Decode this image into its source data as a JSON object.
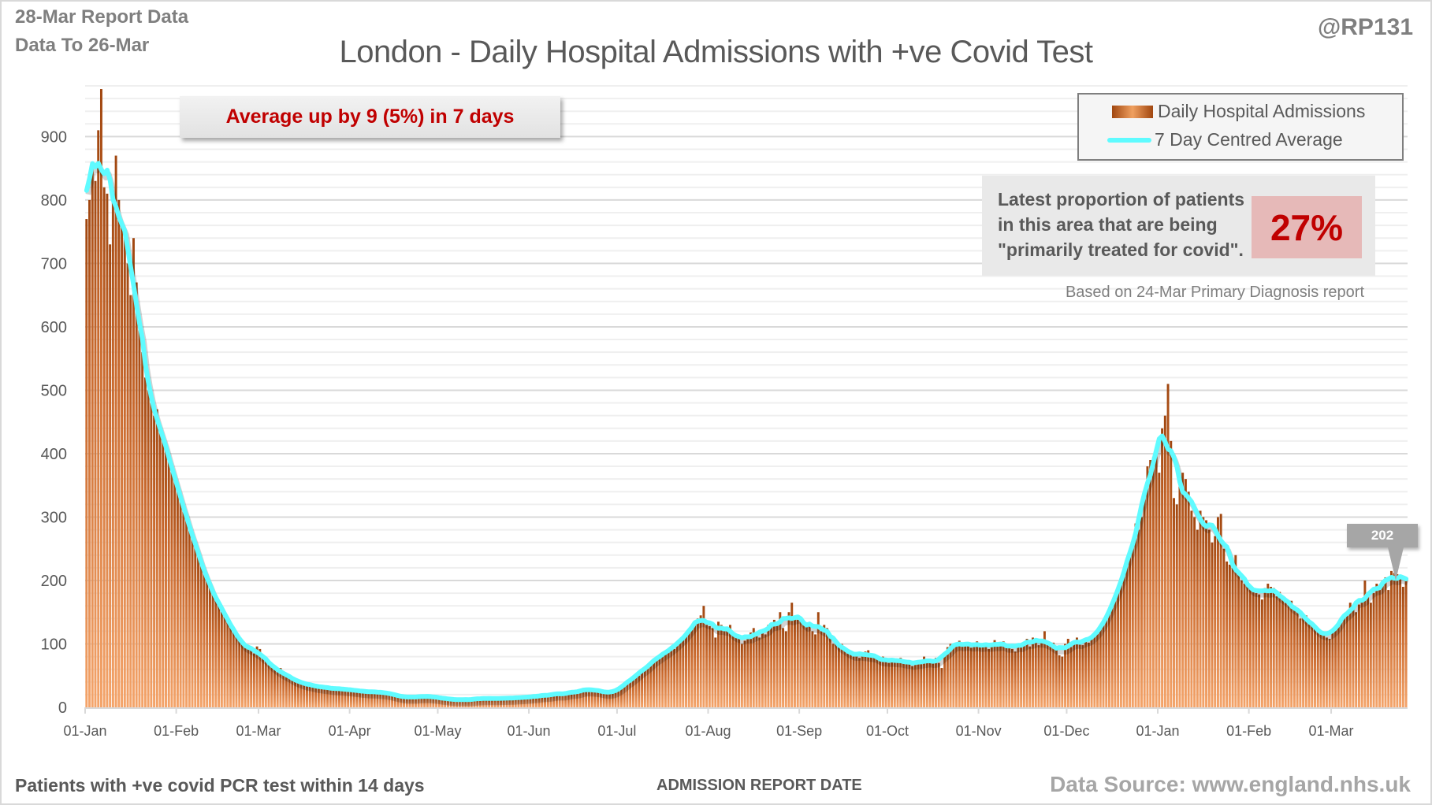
{
  "header": {
    "report_date": "28-Mar Report Data",
    "data_to": "Data To 26-Mar",
    "handle": "@RP131"
  },
  "footer": {
    "left_note": "Patients with +ve covid PCR test within 14 days",
    "source": "Data Source: www.england.nhs.uk"
  },
  "annotations": {
    "average_change": "Average up by 9 (5%) in 7 days",
    "proportion_lines": [
      "Latest proportion of patients",
      "in this area that are being",
      "\"primarily treated for covid\"."
    ],
    "proportion_value": "27%",
    "proportion_note": "Based on 24-Mar Primary Diagnosis report",
    "latest_average_label": "202"
  },
  "colors": {
    "bar_dark": "#a0460f",
    "bar_light": "#f4a46a",
    "average_line": "#5ffbff",
    "highlight_text": "#c00000",
    "highlight_box": "#e6b9b8"
  },
  "chart_data": {
    "type": "bar",
    "title": "London - Daily Hospital Admissions with +ve Covid Test",
    "xlabel": "ADMISSION REPORT DATE",
    "ylabel": "",
    "ylim": [
      0,
      980
    ],
    "y_ticks": [
      0,
      100,
      200,
      300,
      400,
      500,
      600,
      700,
      800,
      900
    ],
    "grid": true,
    "legend_position": "top-right",
    "start_date": "01-Jan",
    "end_date": "26-Mar",
    "x_tick_labels": [
      "01-Jan",
      "01-Feb",
      "01-Mar",
      "01-Apr",
      "01-May",
      "01-Jun",
      "01-Jul",
      "01-Aug",
      "01-Sep",
      "01-Oct",
      "01-Nov",
      "01-Dec",
      "01-Jan",
      "01-Feb",
      "01-Mar"
    ],
    "x_tick_day_index": [
      0,
      31,
      59,
      90,
      120,
      151,
      181,
      212,
      243,
      273,
      304,
      334,
      365,
      396,
      424
    ],
    "series": [
      {
        "name": "Daily Hospital Admissions",
        "type": "bar",
        "values": [
          770,
          800,
          860,
          830,
          910,
          975,
          820,
          810,
          730,
          815,
          870,
          800,
          760,
          740,
          700,
          650,
          740,
          670,
          600,
          560,
          520,
          500,
          480,
          460,
          470,
          440,
          420,
          410,
          400,
          380,
          360,
          350,
          330,
          310,
          300,
          290,
          270,
          260,
          240,
          230,
          215,
          200,
          190,
          180,
          175,
          165,
          150,
          150,
          140,
          130,
          120,
          115,
          105,
          100,
          95,
          92,
          90,
          85,
          96,
          92,
          78,
          75,
          70,
          64,
          60,
          56,
          62,
          54,
          50,
          48,
          45,
          42,
          40,
          40,
          38,
          36,
          35,
          34,
          33,
          34,
          32,
          31,
          30,
          31,
          30,
          29,
          28,
          30,
          29,
          28,
          28,
          27,
          26,
          25,
          26,
          25,
          24,
          25,
          24,
          23,
          25,
          24,
          23,
          22,
          21,
          20,
          18,
          17,
          16,
          15,
          15,
          16,
          17,
          18,
          17,
          16,
          18,
          17,
          16,
          19,
          15,
          14,
          13,
          12,
          12,
          13,
          14,
          12,
          11,
          10,
          12,
          13,
          14,
          13,
          14,
          15,
          14,
          13,
          14,
          15,
          14,
          13,
          14,
          15,
          14,
          15,
          16,
          15,
          14,
          16,
          17,
          16,
          17,
          18,
          17,
          19,
          18,
          20,
          21,
          20,
          19,
          22,
          24,
          23,
          21,
          20,
          24,
          26,
          28,
          27,
          26,
          30,
          29,
          28,
          27,
          25,
          24,
          22,
          23,
          22,
          25,
          28,
          30,
          35,
          40,
          45,
          48,
          52,
          50,
          55,
          62,
          68,
          70,
          72,
          78,
          80,
          85,
          86,
          90,
          95,
          92,
          100,
          105,
          110,
          115,
          120,
          125,
          130,
          140,
          145,
          160,
          130,
          128,
          125,
          110,
          135,
          130,
          125,
          120,
          130,
          115,
          112,
          108,
          100,
          105,
          110,
          118,
          125,
          112,
          110,
          120,
          115,
          130,
          128,
          138,
          132,
          150,
          125,
          120,
          150,
          165,
          140,
          138,
          142,
          135,
          128,
          130,
          120,
          115,
          150,
          120,
          130,
          125,
          110,
          100,
          105,
          95,
          100,
          90,
          85,
          88,
          80,
          82,
          78,
          85,
          88,
          90,
          82,
          78,
          76,
          75,
          80,
          72,
          70,
          74,
          76,
          72,
          78,
          75,
          70,
          68,
          65,
          72,
          70,
          68,
          80,
          75,
          72,
          70,
          78,
          70,
          62,
          85,
          95,
          100,
          98,
          102,
          105,
          98,
          96,
          100,
          94,
          102,
          104,
          96,
          98,
          100,
          92,
          95,
          106,
          100,
          98,
          104,
          100,
          96,
          92,
          88,
          98,
          100,
          102,
          108,
          96,
          110,
          105,
          98,
          104,
          120,
          100,
          96,
          102,
          92,
          82,
          80,
          100,
          108,
          95,
          100,
          110,
          105,
          98,
          106,
          102,
          110,
          115,
          118,
          124,
          130,
          140,
          150,
          160,
          175,
          185,
          200,
          210,
          225,
          240,
          260,
          290,
          280,
          300,
          330,
          380,
          390,
          395,
          400,
          370,
          440,
          460,
          510,
          420,
          330,
          320,
          350,
          370,
          360,
          340,
          310,
          300,
          280,
          310,
          300,
          295,
          280,
          260,
          270,
          300,
          305,
          250,
          230,
          225,
          220,
          240,
          210,
          200,
          195,
          198,
          190,
          185,
          180,
          178,
          170,
          188,
          195,
          190,
          188,
          175,
          182,
          170,
          165,
          162,
          168,
          160,
          152,
          140,
          148,
          145,
          135,
          130,
          125,
          120,
          118,
          115,
          110,
          108,
          118,
          125,
          130,
          140,
          145,
          150,
          165,
          158,
          150,
          162,
          170,
          200,
          175,
          165,
          180,
          195,
          190,
          200,
          205,
          185,
          215,
          212,
          210,
          208,
          190,
          202
        ]
      },
      {
        "name": "7 Day Centred Average",
        "type": "line",
        "derived_from": "Daily Hospital Admissions",
        "window_days": 7,
        "latest_value": 202
      }
    ]
  }
}
